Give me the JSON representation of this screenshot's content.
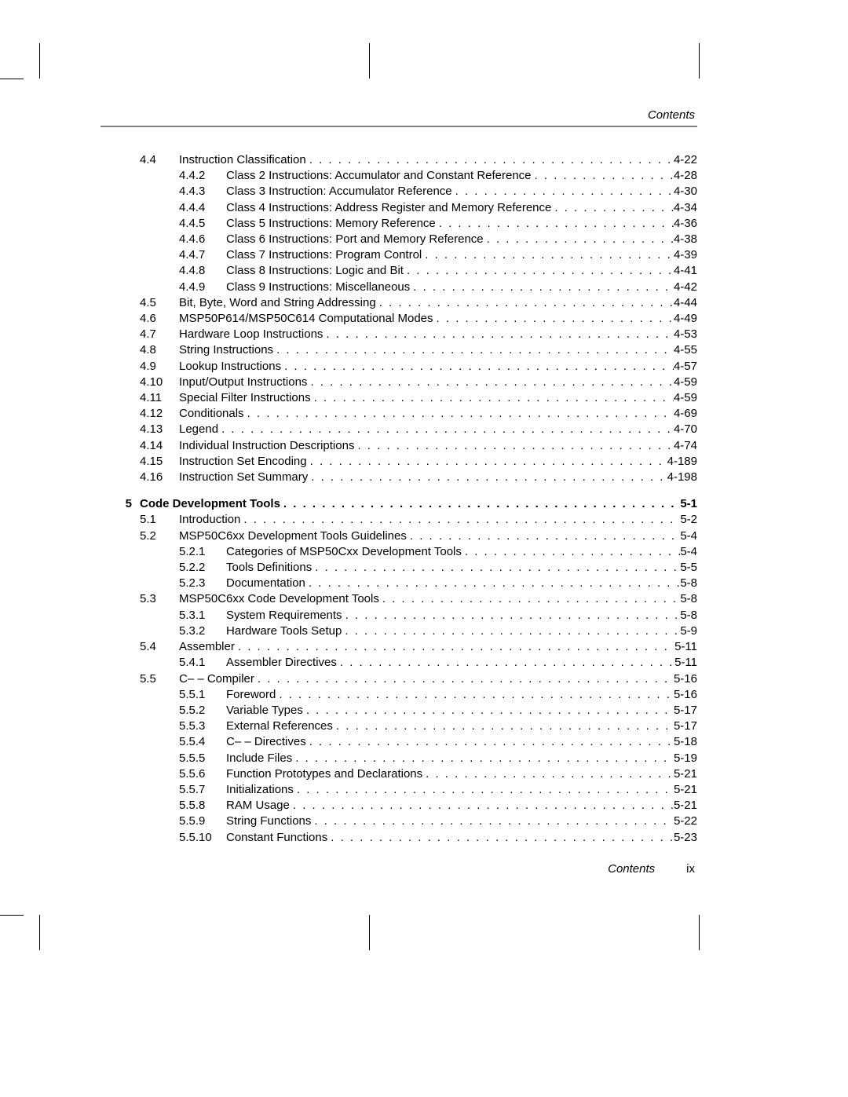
{
  "header": {
    "label": "Contents"
  },
  "footer": {
    "label": "Contents",
    "page": "ix"
  },
  "toc": [
    {
      "type": "sec",
      "num": "4.4",
      "title": "Instruction Classification",
      "page": "4-22"
    },
    {
      "type": "sub",
      "num": "4.4.2",
      "title": "Class 2 Instructions: Accumulator and Constant Reference",
      "page": "4-28"
    },
    {
      "type": "sub",
      "num": "4.4.3",
      "title": "Class 3 Instruction: Accumulator Reference",
      "page": "4-30"
    },
    {
      "type": "sub",
      "num": "4.4.4",
      "title": "Class 4 Instructions: Address Register and Memory Reference",
      "page": "4-34"
    },
    {
      "type": "sub",
      "num": "4.4.5",
      "title": "Class 5 Instructions: Memory Reference",
      "page": "4-36"
    },
    {
      "type": "sub",
      "num": "4.4.6",
      "title": "Class 6 Instructions: Port and Memory Reference",
      "page": "4-38"
    },
    {
      "type": "sub",
      "num": "4.4.7",
      "title": "Class 7 Instructions: Program Control",
      "page": "4-39"
    },
    {
      "type": "sub",
      "num": "4.4.8",
      "title": "Class 8 Instructions: Logic and Bit",
      "page": "4-41"
    },
    {
      "type": "sub",
      "num": "4.4.9",
      "title": "Class 9 Instructions: Miscellaneous",
      "page": "4-42"
    },
    {
      "type": "sec",
      "num": "4.5",
      "title": "Bit, Byte, Word and String Addressing",
      "page": "4-44"
    },
    {
      "type": "sec",
      "num": "4.6",
      "title": "MSP50P614/MSP50C614 Computational Modes",
      "page": "4-49"
    },
    {
      "type": "sec",
      "num": "4.7",
      "title": "Hardware Loop Instructions",
      "page": "4-53"
    },
    {
      "type": "sec",
      "num": "4.8",
      "title": "String Instructions",
      "page": "4-55"
    },
    {
      "type": "sec",
      "num": "4.9",
      "title": "Lookup Instructions",
      "page": "4-57"
    },
    {
      "type": "sec",
      "num": "4.10",
      "title": "Input/Output Instructions",
      "page": "4-59"
    },
    {
      "type": "sec",
      "num": "4.11",
      "title": "Special Filter Instructions",
      "page": "4-59"
    },
    {
      "type": "sec",
      "num": "4.12",
      "title": "Conditionals",
      "page": "4-69"
    },
    {
      "type": "sec",
      "num": "4.13",
      "title": "Legend",
      "page": "4-70"
    },
    {
      "type": "sec",
      "num": "4.14",
      "title": "Individual Instruction Descriptions",
      "page": "4-74"
    },
    {
      "type": "sec",
      "num": "4.15",
      "title": "Instruction Set Encoding",
      "page": "4-189"
    },
    {
      "type": "sec",
      "num": "4.16",
      "title": "Instruction Set Summary",
      "page": "4-198"
    },
    {
      "type": "spacer"
    },
    {
      "type": "chap",
      "num": "5",
      "title": "Code Development Tools",
      "page": "5-1"
    },
    {
      "type": "sec",
      "num": "5.1",
      "title": "Introduction",
      "page": "5-2"
    },
    {
      "type": "sec",
      "num": "5.2",
      "title": "MSP50C6xx Development Tools Guidelines",
      "page": "5-4"
    },
    {
      "type": "sub",
      "num": "5.2.1",
      "title": "Categories of MSP50Cxx Development Tools",
      "page": "5-4"
    },
    {
      "type": "sub",
      "num": "5.2.2",
      "title": "Tools Definitions",
      "page": "5-5"
    },
    {
      "type": "sub",
      "num": "5.2.3",
      "title": "Documentation",
      "page": "5-8"
    },
    {
      "type": "sec",
      "num": "5.3",
      "title": "MSP50C6xx Code Development Tools",
      "page": "5-8"
    },
    {
      "type": "sub",
      "num": "5.3.1",
      "title": "System Requirements",
      "page": "5-8"
    },
    {
      "type": "sub",
      "num": "5.3.2",
      "title": "Hardware Tools Setup",
      "page": "5-9"
    },
    {
      "type": "sec",
      "num": "5.4",
      "title": "Assembler",
      "page": "5-11"
    },
    {
      "type": "sub",
      "num": "5.4.1",
      "title": "Assembler Directives",
      "page": "5-11"
    },
    {
      "type": "sec",
      "num": "5.5",
      "title": "C– – Compiler",
      "page": "5-16"
    },
    {
      "type": "sub",
      "num": "5.5.1",
      "title": "Foreword",
      "page": "5-16"
    },
    {
      "type": "sub",
      "num": "5.5.2",
      "title": "Variable Types",
      "page": "5-17"
    },
    {
      "type": "sub",
      "num": "5.5.3",
      "title": "External References",
      "page": "5-17"
    },
    {
      "type": "sub",
      "num": "5.5.4",
      "title": "C– – Directives",
      "page": "5-18"
    },
    {
      "type": "sub",
      "num": "5.5.5",
      "title": "Include Files",
      "page": "5-19"
    },
    {
      "type": "sub",
      "num": "5.5.6",
      "title": "Function Prototypes and Declarations",
      "page": "5-21"
    },
    {
      "type": "sub",
      "num": "5.5.7",
      "title": "Initializations",
      "page": "5-21"
    },
    {
      "type": "sub",
      "num": "5.5.8",
      "title": "RAM Usage",
      "page": "5-21"
    },
    {
      "type": "sub",
      "num": "5.5.9",
      "title": "String Functions",
      "page": "5-22"
    },
    {
      "type": "sub",
      "num": "5.5.10",
      "title": "Constant Functions",
      "page": "5-23"
    }
  ]
}
